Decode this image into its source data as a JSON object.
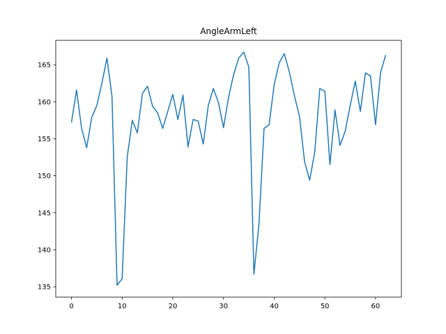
{
  "chart_data": {
    "type": "line",
    "title": "AngleArmLeft",
    "xlabel": "",
    "ylabel": "",
    "xlim": [
      -3.1,
      65.1
    ],
    "ylim": [
      133.6,
      168.3
    ],
    "xticks": [
      0,
      10,
      20,
      30,
      40,
      50,
      60
    ],
    "yticks": [
      135,
      140,
      145,
      150,
      155,
      160,
      165
    ],
    "grid": false,
    "legend": "none",
    "series": [
      {
        "color": "#1f77b4",
        "x": [
          0,
          1,
          2,
          3,
          4,
          5,
          6,
          7,
          8,
          9,
          10,
          11,
          12,
          13,
          14,
          15,
          16,
          17,
          18,
          19,
          20,
          21,
          22,
          23,
          24,
          25,
          26,
          27,
          28,
          29,
          30,
          31,
          32,
          33,
          34,
          35,
          36,
          37,
          38,
          39,
          40,
          41,
          42,
          43,
          44,
          45,
          46,
          47,
          48,
          49,
          50,
          51,
          52,
          53,
          54,
          55,
          56,
          57,
          58,
          59,
          60,
          61,
          62
        ],
        "values": [
          157.2,
          161.6,
          156.4,
          153.8,
          157.9,
          159.5,
          162.5,
          165.9,
          160.7,
          135.2,
          136.1,
          152.5,
          157.5,
          155.8,
          161.1,
          162.1,
          159.4,
          158.5,
          156.4,
          158.7,
          161.0,
          157.6,
          160.9,
          153.9,
          157.6,
          157.4,
          154.3,
          159.5,
          161.8,
          159.9,
          156.5,
          160.6,
          163.7,
          165.9,
          166.7,
          164.7,
          136.7,
          143.5,
          156.4,
          156.9,
          162.3,
          165.3,
          166.5,
          164.0,
          160.8,
          158.0,
          151.9,
          149.4,
          153.2,
          161.8,
          161.4,
          151.5,
          158.9,
          154.1,
          156.0,
          159.5,
          162.8,
          158.7,
          163.9,
          163.5,
          156.9,
          164.0,
          166.3
        ]
      }
    ]
  }
}
